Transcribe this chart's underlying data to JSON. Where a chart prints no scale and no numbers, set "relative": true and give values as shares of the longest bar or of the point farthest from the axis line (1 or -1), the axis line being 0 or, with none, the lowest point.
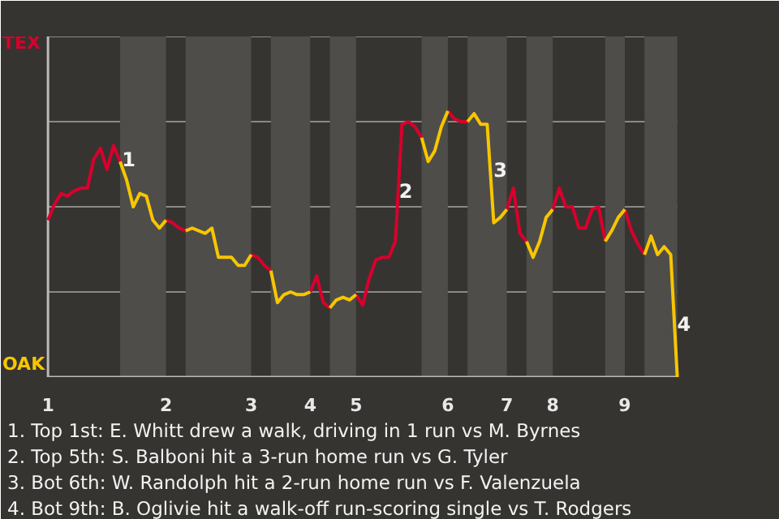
{
  "chart_data": {
    "type": "line",
    "relative": true,
    "grid": "y",
    "categories": [
      "1",
      null,
      null,
      null,
      null,
      null,
      null,
      null,
      null,
      null,
      null,
      null,
      null,
      null,
      null,
      null,
      null,
      null,
      "2",
      null,
      null,
      null,
      null,
      null,
      null,
      null,
      null,
      null,
      null,
      null,
      null,
      "3",
      null,
      null,
      null,
      null,
      null,
      null,
      null,
      null,
      "4",
      null,
      null,
      null,
      null,
      null,
      null,
      "5",
      null,
      null,
      null,
      null,
      null,
      null,
      null,
      null,
      null,
      null,
      null,
      null,
      null,
      "6",
      null,
      null,
      null,
      null,
      null,
      null,
      null,
      null,
      "7",
      null,
      null,
      null,
      null,
      null,
      null,
      "8",
      null,
      null,
      null,
      null,
      null,
      null,
      null,
      null,
      null,
      null,
      "9",
      null,
      null,
      null,
      null,
      null,
      null,
      null,
      null
    ],
    "series": [
      {
        "color": "#d8002c",
        "values": [
          0.59,
          0.65,
          0.69,
          0.68,
          0.7,
          0.71,
          0.71,
          0.82,
          0.86,
          0.78,
          0.87,
          0.81,
          null,
          null,
          null,
          null,
          null,
          null,
          0.59,
          0.58,
          0.56,
          0.55,
          null,
          null,
          null,
          null,
          null,
          null,
          null,
          null,
          null,
          0.46,
          0.45,
          0.42,
          0.4,
          null,
          null,
          null,
          null,
          null,
          0.32,
          0.38,
          0.28,
          0.26,
          null,
          null,
          null,
          0.31,
          0.27,
          0.37,
          0.44,
          0.45,
          0.45,
          0.51,
          0.95,
          0.96,
          0.94,
          0.9,
          null,
          null,
          null,
          1,
          0.97,
          0.96,
          0.96,
          null,
          null,
          null,
          null,
          null,
          0.63,
          0.71,
          0.54,
          0.51,
          null,
          null,
          null,
          0.63,
          0.71,
          0.64,
          0.64,
          0.56,
          0.56,
          0.63,
          0.64,
          0.51,
          null,
          null,
          0.63,
          0.55,
          0.5,
          0.46,
          null,
          null,
          null,
          null,
          null
        ]
      },
      {
        "color": "#f7c600",
        "values": [
          null,
          null,
          null,
          null,
          null,
          null,
          null,
          null,
          null,
          null,
          null,
          0.81,
          0.74,
          0.64,
          0.69,
          0.68,
          0.59,
          0.56,
          0.59,
          null,
          null,
          0.55,
          0.56,
          0.55,
          0.54,
          0.56,
          0.45,
          0.45,
          0.45,
          0.42,
          0.42,
          0.46,
          null,
          null,
          0.4,
          0.28,
          0.31,
          0.32,
          0.31,
          0.31,
          0.32,
          null,
          null,
          0.26,
          0.29,
          0.3,
          0.29,
          0.31,
          null,
          null,
          null,
          null,
          null,
          null,
          null,
          null,
          null,
          0.9,
          0.81,
          0.85,
          0.94,
          1,
          null,
          null,
          0.96,
          0.99,
          0.95,
          0.95,
          0.58,
          0.6,
          0.63,
          null,
          null,
          0.51,
          0.45,
          0.51,
          0.6,
          0.63,
          null,
          null,
          null,
          null,
          null,
          null,
          null,
          0.51,
          0.55,
          0.6,
          0.63,
          null,
          null,
          0.46,
          0.53,
          0.46,
          0.49,
          0.46,
          0
        ]
      }
    ],
    "annotations": [
      "TEX",
      "OAK",
      "1",
      "2",
      "3",
      "4",
      "1. Top 1st: E. Whitt drew a walk, driving in 1 run vs M. Byrnes",
      "2. Top 5th: S. Balboni hit a 3-run home run vs G. Tyler",
      "3. Bot 6th: W. Randolph hit a 2-run home run vs F. Valenzuela",
      "4. Bot 9th: B. Oglivie hit a walk-off run-scoring single vs T. Rodgers"
    ]
  }
}
